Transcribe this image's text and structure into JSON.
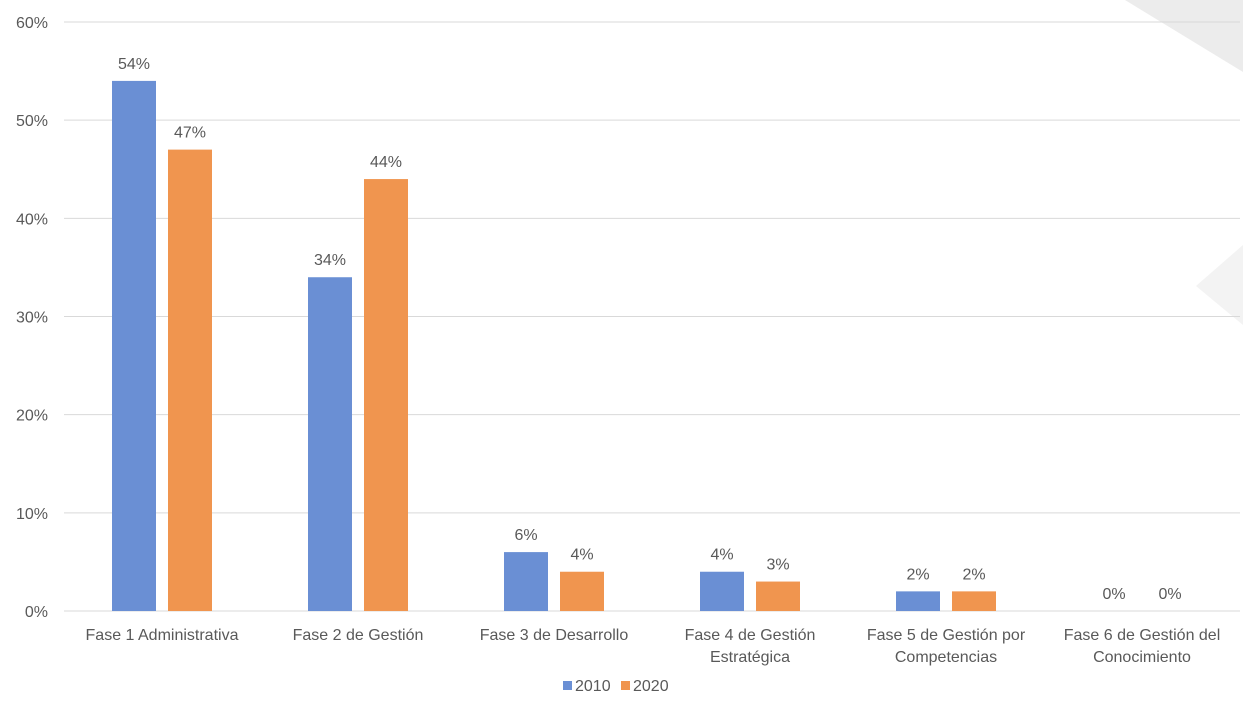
{
  "chart_data": {
    "type": "bar",
    "categories": [
      [
        "Fase 1 Administrativa"
      ],
      [
        "Fase 2 de Gestión"
      ],
      [
        "Fase 3 de Desarrollo"
      ],
      [
        "Fase 4 de Gestión",
        "Estratégica"
      ],
      [
        "Fase 5 de Gestión por",
        "Competencias"
      ],
      [
        "Fase 6 de Gestión del",
        "Conocimiento"
      ]
    ],
    "series": [
      {
        "name": "2010",
        "color": "#6a8fd4",
        "values": [
          54,
          34,
          6,
          4,
          2,
          0
        ],
        "labels": [
          "54%",
          "34%",
          "6%",
          "4%",
          "2%",
          "0%"
        ]
      },
      {
        "name": "2020",
        "color": "#f0954f",
        "values": [
          47,
          44,
          4,
          3,
          2,
          0
        ],
        "labels": [
          "47%",
          "44%",
          "4%",
          "3%",
          "2%",
          "0%"
        ]
      }
    ],
    "ylim": [
      0,
      60
    ],
    "yticks": [
      "0%",
      "10%",
      "20%",
      "30%",
      "40%",
      "50%",
      "60%"
    ],
    "grid": true,
    "legend": "bottom-center",
    "gridColor": "#d9d9d9"
  }
}
